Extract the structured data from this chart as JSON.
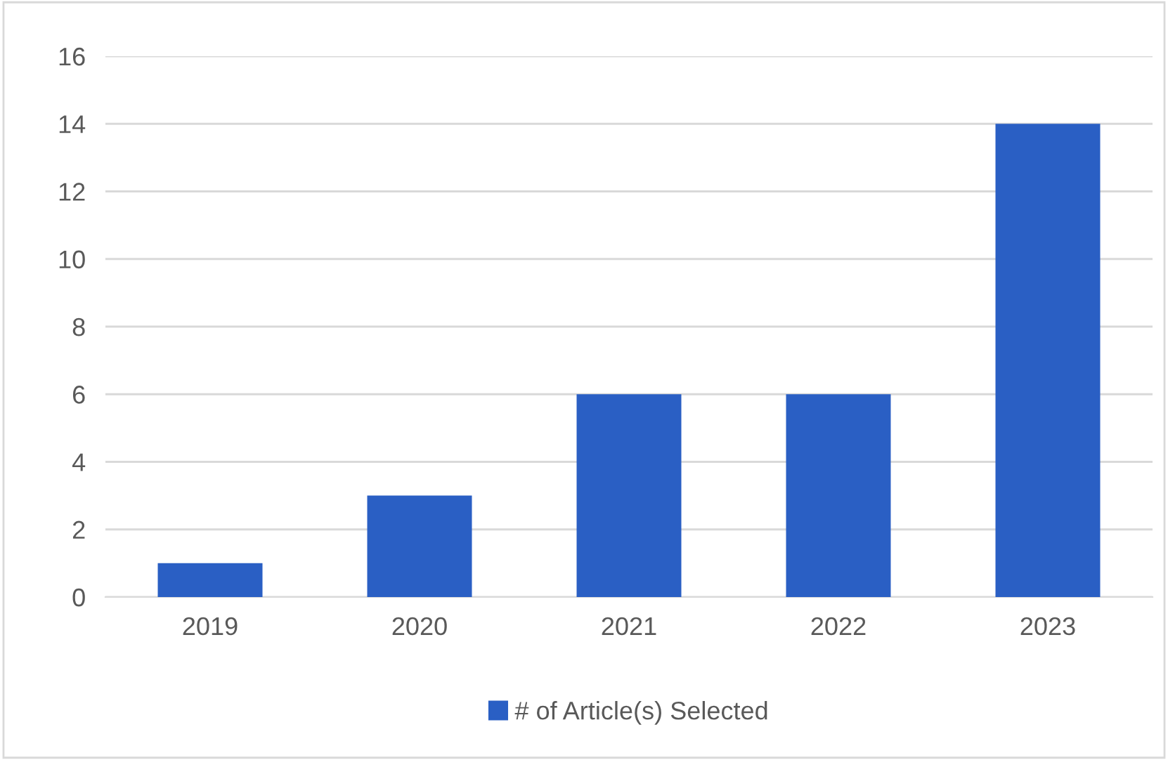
{
  "chart_data": {
    "type": "bar",
    "categories": [
      "2019",
      "2020",
      "2021",
      "2022",
      "2023"
    ],
    "series": [
      {
        "name": "# of Article(s) Selected",
        "color": "#2a5fc4",
        "values": [
          1,
          3,
          6,
          6,
          14
        ]
      }
    ],
    "ylim": [
      0,
      16
    ],
    "yticks": [
      0,
      2,
      4,
      6,
      8,
      10,
      12,
      14,
      16
    ],
    "grid": "y",
    "legend": "bottom"
  }
}
